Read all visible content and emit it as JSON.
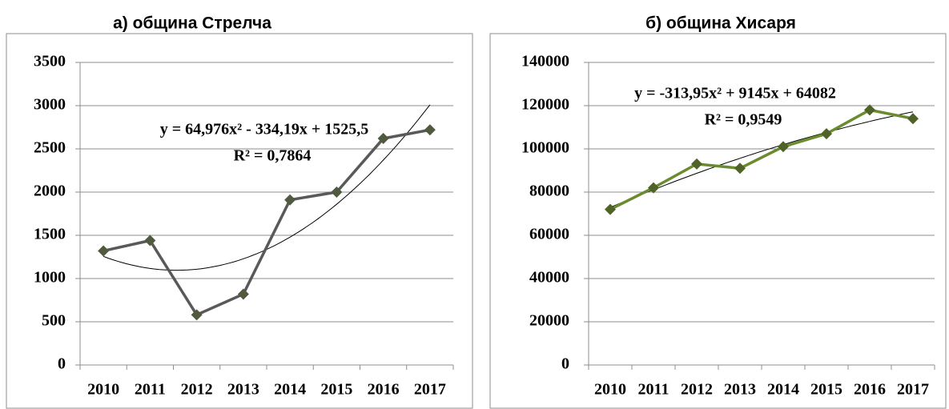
{
  "chart_data": [
    {
      "type": "line",
      "title": "а) община Стрелча",
      "categories": [
        "2010",
        "2011",
        "2012",
        "2013",
        "2014",
        "2015",
        "2016",
        "2017"
      ],
      "values": [
        1320,
        1440,
        580,
        820,
        1910,
        2000,
        2620,
        2720
      ],
      "color": "#595959",
      "marker_color": "#4f5a3f",
      "ylim": [
        0,
        3500
      ],
      "yticks": [
        0,
        500,
        1000,
        1500,
        2000,
        2500,
        3000,
        3500
      ],
      "grid": true,
      "trendline": {
        "coefficients": [
          64.976,
          -334.19,
          1525.5
        ],
        "annotation": [
          "y = 64,976x² - 334,19x + 1525,5",
          "R² = 0,7864"
        ]
      }
    },
    {
      "type": "line",
      "title": "б) община Хисаря",
      "categories": [
        "2010",
        "2011",
        "2012",
        "2013",
        "2014",
        "2015",
        "2016",
        "2017"
      ],
      "values": [
        72000,
        82000,
        93000,
        91000,
        101000,
        107000,
        118000,
        114000
      ],
      "color": "#6b8b2f",
      "marker_color": "#4f6228",
      "ylim": [
        0,
        140000
      ],
      "yticks": [
        0,
        20000,
        40000,
        60000,
        80000,
        100000,
        120000,
        140000
      ],
      "grid": true,
      "trendline": {
        "coefficients": [
          -313.95,
          9145,
          64082
        ],
        "annotation": [
          "y = -313,95x² + 9145x + 64082",
          "R² = 0,9549"
        ]
      }
    }
  ]
}
